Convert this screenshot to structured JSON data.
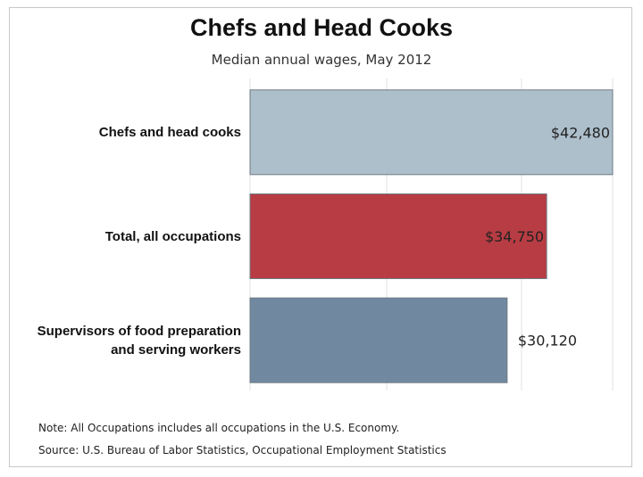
{
  "chart_data": {
    "type": "bar",
    "orientation": "horizontal",
    "title": "Chefs and Head Cooks",
    "subtitle": "Median annual wages, May 2012",
    "categories": [
      "Chefs and head cooks",
      "Total, all occupations",
      "Supervisors of food preparation and serving workers"
    ],
    "values": [
      42480,
      34750,
      30120
    ],
    "value_labels": [
      "$42,480",
      "$34,750",
      "$30,120"
    ],
    "colors": [
      "#adbfcb",
      "#b83c43",
      "#7189a0"
    ],
    "xlim": [
      0,
      42480
    ],
    "grid": true,
    "legend": "none"
  },
  "notes": {
    "note": "Note: All Occupations includes all occupations in the U.S. Economy.",
    "source": "Source: U.S. Bureau of Labor Statistics, Occupational Employment Statistics"
  }
}
